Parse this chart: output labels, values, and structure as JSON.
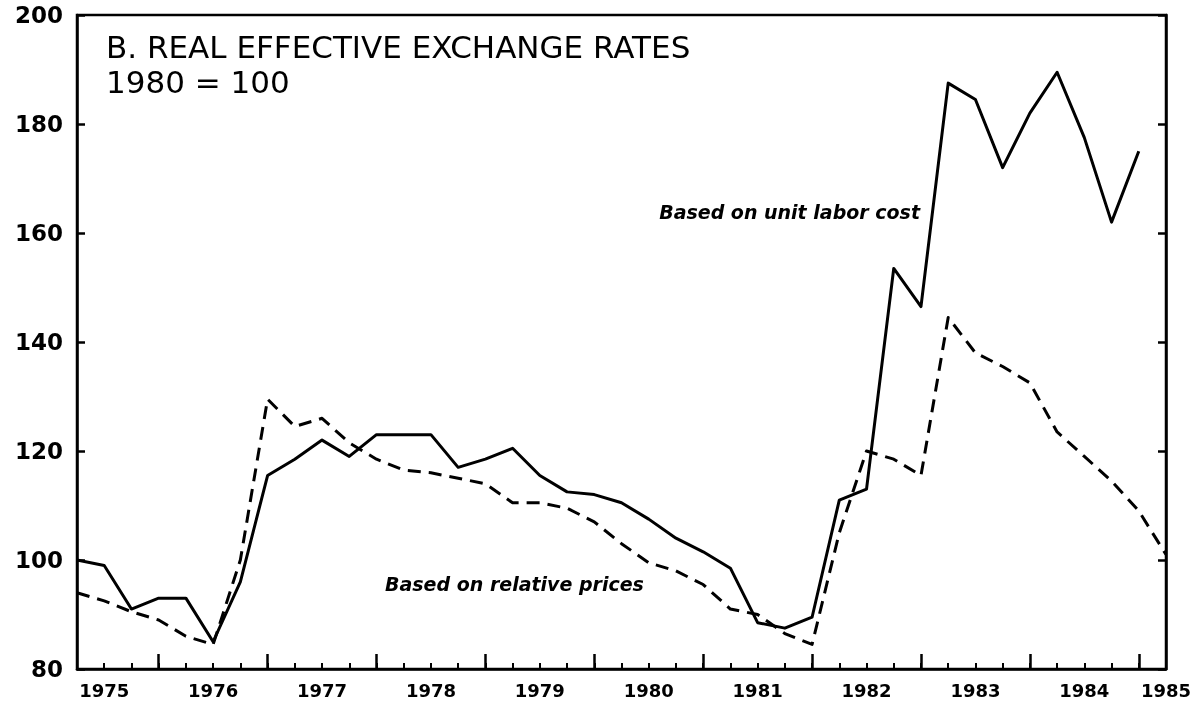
{
  "chart_data": {
    "type": "line",
    "title": "B. REAL EFFECTIVE EXCHANGE RATES",
    "subtitle": "1980 = 100",
    "categories": [
      null,
      "1975",
      null,
      null,
      null,
      "1976",
      null,
      null,
      null,
      "1977",
      null,
      null,
      null,
      "1978",
      null,
      null,
      null,
      "1979",
      null,
      null,
      null,
      "1980",
      null,
      null,
      null,
      "1981",
      null,
      null,
      null,
      "1982",
      null,
      null,
      null,
      "1983",
      null,
      null,
      null,
      "1984",
      null,
      null,
      "1985"
    ],
    "series": [
      {
        "name": "Based on unit labor cost",
        "color": "#000000",
        "line_style": "solid",
        "values": [
          100,
          99,
          91,
          93,
          93,
          85,
          96,
          115.5,
          118.5,
          122,
          119,
          123,
          123,
          123,
          117,
          118.5,
          120.5,
          115.5,
          112.5,
          112,
          110.5,
          107.5,
          104,
          101.5,
          98.5,
          88.5,
          87.5,
          89.5,
          111,
          113,
          153.5,
          146.5,
          187.5,
          184.5,
          172,
          182,
          189.5,
          177.5,
          162,
          175,
          null
        ]
      },
      {
        "name": "Based on relative prices",
        "color": "#000000",
        "line_style": "dashed",
        "values": [
          94,
          92.5,
          90.5,
          89,
          86,
          84.5,
          100,
          129.5,
          124.5,
          126,
          121.5,
          118.5,
          116.5,
          116,
          115,
          114,
          110.5,
          110.5,
          109.5,
          107,
          103,
          99.5,
          98,
          95.5,
          91,
          90,
          86.5,
          84.5,
          105,
          120,
          118.5,
          115.5,
          144.5,
          138,
          135.5,
          132.5,
          123.5,
          119,
          114.5,
          109,
          101
        ]
      }
    ],
    "ylim": [
      80,
      200
    ],
    "yticks": [
      80,
      100,
      120,
      140,
      160,
      180,
      200
    ],
    "grid": false,
    "legend": false,
    "marker": "none"
  }
}
